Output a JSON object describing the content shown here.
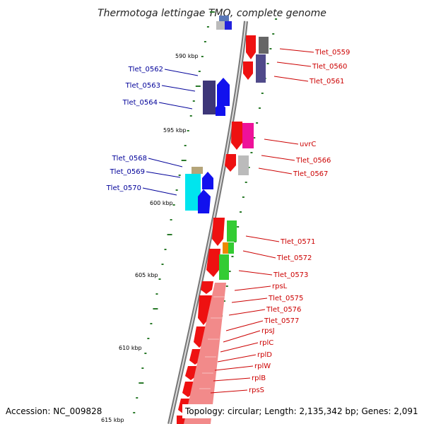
{
  "title": "Thermotoga lettingae TMO, complete genome",
  "footer": {
    "accession": "Accession: NC_009828",
    "topology": "Topology: circular; Length: 2,135,342 bp; Genes: 2,091"
  },
  "ruler": [
    "590 kbp",
    "595 kbp",
    "600 kbp",
    "605 kbp",
    "610 kbp",
    "615 kbp"
  ],
  "colors": {
    "backbone": "#808080",
    "forward_label": "#000099",
    "reverse_label": "#cc0000",
    "tick": "#2a7a2a"
  },
  "left_genes": [
    "Tlet_0562",
    "Tlet_0563",
    "Tlet_0564",
    "Tlet_0568",
    "Tlet_0569",
    "Tlet_0570"
  ],
  "right_genes": [
    "Tlet_0559",
    "Tlet_0560",
    "Tlet_0561",
    "uvrC",
    "Tlet_0566",
    "Tlet_0567",
    "Tlet_0571",
    "Tlet_0572",
    "Tlet_0573",
    "rpsL",
    "Tlet_0575",
    "Tlet_0576",
    "Tlet_0577",
    "rpsJ",
    "rplC",
    "rplD",
    "rplW",
    "rplB",
    "rpsS"
  ]
}
